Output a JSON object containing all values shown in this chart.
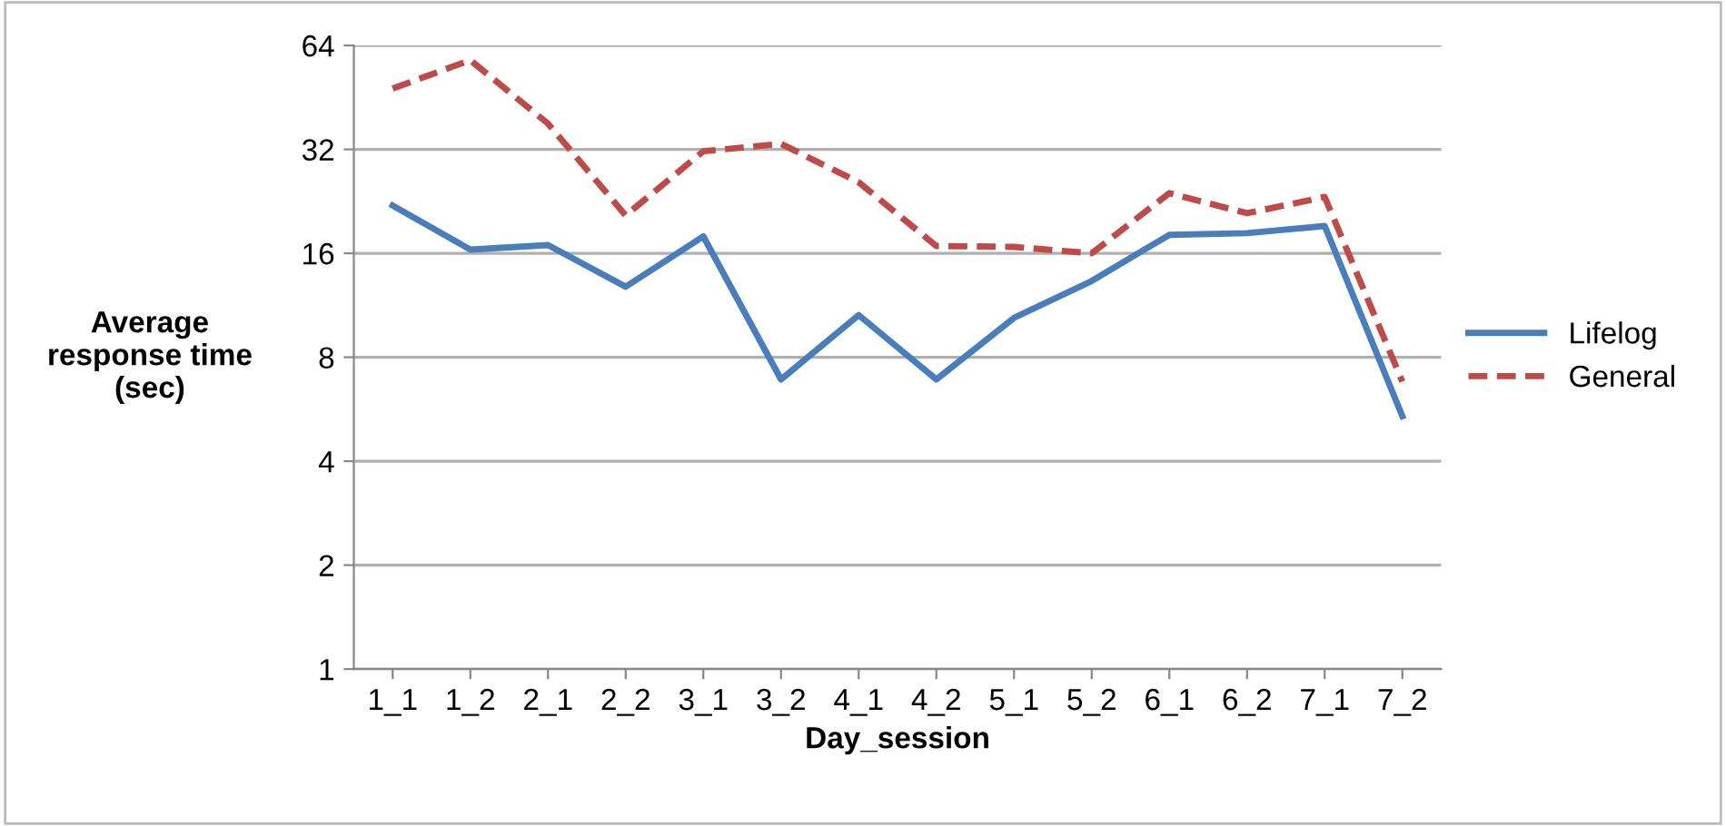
{
  "chart_data": {
    "type": "line",
    "xlabel": "Day_session",
    "ylabel": "Average\nresponse time\n(sec)",
    "categories": [
      "1_1",
      "1_2",
      "2_1",
      "2_2",
      "3_1",
      "3_2",
      "4_1",
      "4_2",
      "5_1",
      "5_2",
      "6_1",
      "6_2",
      "7_1",
      "7_2"
    ],
    "series": [
      {
        "name": "Lifelog",
        "color": "#4a7ebb",
        "line_style": "solid",
        "values": [
          22,
          16.4,
          16.9,
          12.8,
          17.9,
          6.9,
          10.6,
          6.9,
          10.4,
          13.3,
          18.1,
          18.3,
          19.2,
          5.4
        ]
      },
      {
        "name": "General",
        "color": "#be4b48",
        "line_style": "dashed",
        "values": [
          48,
          58,
          38,
          20.6,
          31.6,
          33.2,
          25.7,
          16.8,
          16.7,
          16,
          23.9,
          20.9,
          23.3,
          6.8
        ]
      }
    ],
    "log": "y",
    "ylim": [
      1,
      64
    ],
    "yticks": [
      1,
      2,
      4,
      8,
      16,
      32,
      64
    ],
    "grid": "y",
    "legend": "right",
    "marker": "none"
  }
}
